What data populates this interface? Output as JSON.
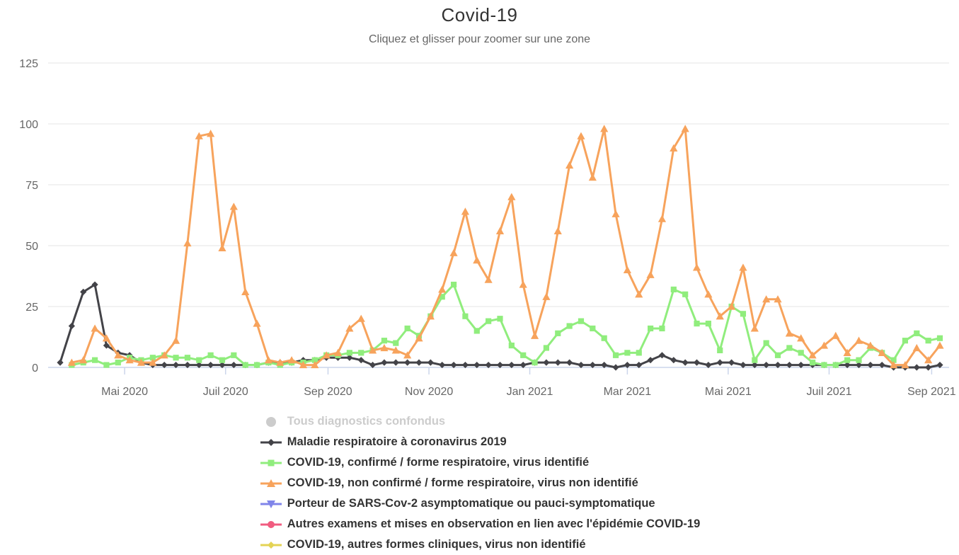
{
  "header": {
    "title": "Covid-19",
    "subtitle": "Cliquez et glisser pour zoomer sur une zone"
  },
  "chart_data": {
    "type": "line",
    "title": "Covid-19",
    "subtitle": "Cliquez et glisser pour zoomer sur une zone",
    "x_unit": "semaine (hebdomadaire, ~mars 2020 → sept 2021)",
    "n_points": 77,
    "grid": "horizontal-only",
    "legend_position": "bottom-center-vertical",
    "yAxis": {
      "ticks": [
        0,
        25,
        50,
        75,
        100,
        125
      ],
      "range": [
        0,
        125
      ],
      "gridline_color": "#e6e6e6",
      "label_color": "#666666"
    },
    "xAxis": {
      "line_color": "#ccd6eb",
      "label_color": "#666666",
      "ticks": [
        {
          "label": "Mai 2020",
          "week": 5.57
        },
        {
          "label": "Juil 2020",
          "week": 14.29
        },
        {
          "label": "Sep 2020",
          "week": 23.14
        },
        {
          "label": "Nov 2020",
          "week": 31.86
        },
        {
          "label": "Jan 2021",
          "week": 40.57
        },
        {
          "label": "Mar 2021",
          "week": 49.0
        },
        {
          "label": "Mai 2021",
          "week": 57.71
        },
        {
          "label": "Juil 2021",
          "week": 66.43
        },
        {
          "label": "Sep 2021",
          "week": 75.29
        }
      ]
    },
    "series": [
      {
        "name": "Tous diagnostics confondus",
        "color": "#cccccc",
        "marker": "circle",
        "disabled": true,
        "values": []
      },
      {
        "name": "Maladie respiratoire à coronavirus 2019",
        "color": "#434348",
        "marker": "diamond",
        "disabled": false,
        "values": [
          2,
          17,
          31,
          34,
          9,
          6,
          5,
          2,
          1,
          1,
          1,
          1,
          1,
          1,
          1,
          1,
          1,
          1,
          2,
          2,
          2,
          3,
          3,
          4,
          4,
          4,
          3,
          1,
          2,
          2,
          2,
          2,
          2,
          1,
          1,
          1,
          1,
          1,
          1,
          1,
          1,
          2,
          2,
          2,
          2,
          1,
          1,
          1,
          0,
          1,
          1,
          3,
          5,
          3,
          2,
          2,
          1,
          2,
          2,
          1,
          1,
          1,
          1,
          1,
          1,
          1,
          1,
          1,
          1,
          1,
          1,
          1,
          0,
          0,
          0,
          0,
          1
        ]
      },
      {
        "name": "COVID-19, confirmé / forme respiratoire, virus identifié",
        "color": "#90ed7d",
        "marker": "square",
        "disabled": false,
        "values": [
          null,
          1,
          2,
          3,
          1,
          2,
          4,
          3,
          4,
          5,
          4,
          4,
          3,
          5,
          3,
          5,
          1,
          1,
          2,
          1,
          2,
          2,
          3,
          5,
          5,
          6,
          6,
          7,
          11,
          10,
          16,
          13,
          21,
          29,
          34,
          21,
          15,
          19,
          20,
          9,
          5,
          2,
          8,
          14,
          17,
          19,
          16,
          12,
          5,
          6,
          6,
          16,
          16,
          32,
          30,
          18,
          18,
          7,
          25,
          22,
          3,
          10,
          5,
          8,
          6,
          2,
          1,
          1,
          3,
          3,
          8,
          6,
          3,
          11,
          14,
          11,
          12
        ]
      },
      {
        "name": "COVID-19, non confirmé / forme respiratoire, virus non identifié",
        "color": "#f7a35c",
        "marker": "triangle",
        "disabled": false,
        "values": [
          null,
          2,
          3,
          16,
          12,
          5,
          3,
          2,
          2,
          5,
          11,
          51,
          95,
          96,
          49,
          66,
          31,
          18,
          3,
          2,
          3,
          1,
          1,
          5,
          6,
          16,
          20,
          7,
          8,
          7,
          5,
          12,
          21,
          32,
          47,
          64,
          44,
          36,
          56,
          70,
          34,
          13,
          29,
          56,
          83,
          95,
          78,
          98,
          63,
          40,
          30,
          38,
          61,
          90,
          98,
          41,
          30,
          21,
          25,
          41,
          16,
          28,
          28,
          14,
          12,
          5,
          9,
          13,
          6,
          11,
          9,
          6,
          1,
          1,
          8,
          3,
          9
        ]
      },
      {
        "name": "Porteur de SARS-Cov-2 asymptomatique ou pauci-symptomatique",
        "color": "#8085e9",
        "marker": "triangle-down",
        "disabled": false,
        "values": []
      },
      {
        "name": "Autres examens et mises en observation en lien avec l'épidémie COVID-19",
        "color": "#f15c80",
        "marker": "circle",
        "disabled": false,
        "values": []
      },
      {
        "name": "COVID-19, autres formes cliniques, virus non identifié",
        "color": "#e4d354",
        "marker": "diamond",
        "disabled": false,
        "values": []
      }
    ]
  }
}
